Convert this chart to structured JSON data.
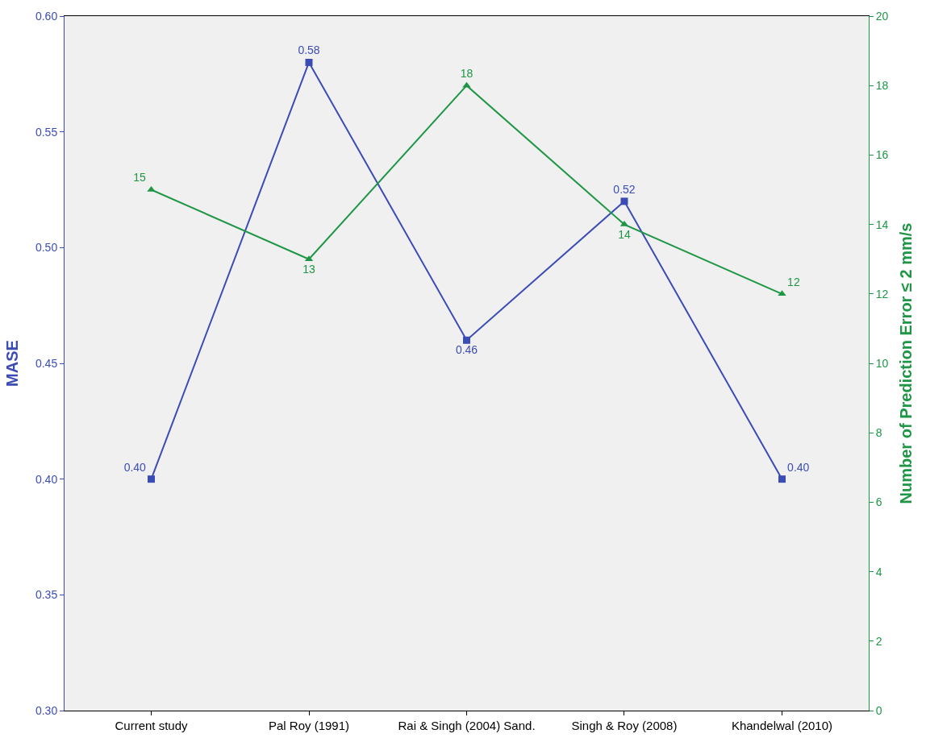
{
  "chart_data": {
    "type": "line",
    "ylabel": "MASE",
    "y2label": "Number of Prediction Error ≤ 2 mm/s",
    "categories": [
      "Current study",
      "Pal Roy (1991)",
      "Rai & Singh (2004) Sand.",
      "Singh & Roy (2008)",
      "Khandelwal (2010)"
    ],
    "series": [
      {
        "color": "#3b4cb5",
        "marker": "square",
        "values": [
          0.4,
          0.58,
          0.46,
          0.52,
          0.4
        ],
        "value_labels": [
          "0.40",
          "0.58",
          "0.46",
          "0.52",
          "0.40"
        ]
      },
      {
        "color": "#1e9646",
        "marker": "triangle",
        "axis": "y2",
        "values": [
          15,
          13,
          18,
          14,
          12
        ],
        "value_labels": [
          "15",
          "13",
          "18",
          "14",
          "12"
        ]
      }
    ],
    "ylim": [
      0.3,
      0.6
    ],
    "yticks": [
      {
        "value": 0.3,
        "label": "0.30"
      },
      {
        "value": 0.35,
        "label": "0.35"
      },
      {
        "value": 0.4,
        "label": "0.40"
      },
      {
        "value": 0.45,
        "label": "0.45"
      },
      {
        "value": 0.5,
        "label": "0.50"
      },
      {
        "value": 0.55,
        "label": "0.55"
      },
      {
        "value": 0.6,
        "label": "0.60"
      }
    ],
    "y2lim": [
      0,
      20
    ],
    "y2ticks": [
      0,
      2,
      4,
      6,
      8,
      10,
      12,
      14,
      16,
      18,
      20
    ],
    "grid": false,
    "legend": false
  }
}
